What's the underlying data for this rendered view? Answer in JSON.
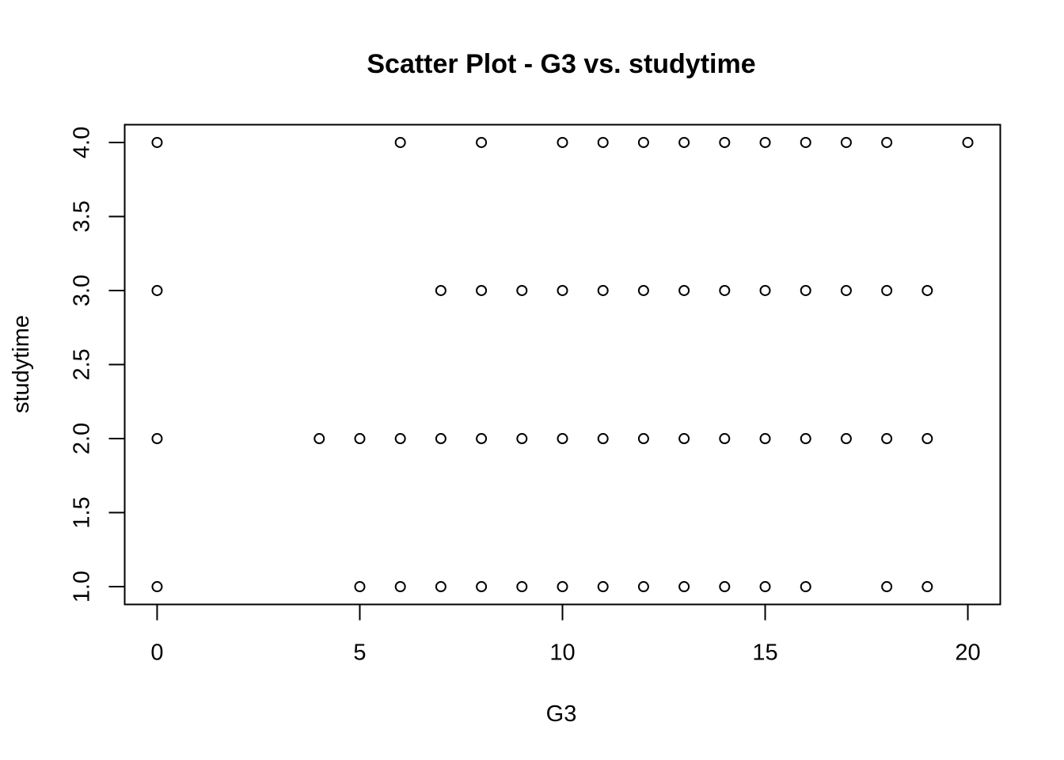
{
  "chart_data": {
    "type": "scatter",
    "title": "Scatter Plot - G3 vs. studytime",
    "xlabel": "G3",
    "ylabel": "studytime",
    "xlim": [
      -0.8,
      20.8
    ],
    "ylim": [
      0.88,
      4.12
    ],
    "xticks": [
      0,
      5,
      10,
      15,
      20
    ],
    "xtick_labels": [
      "0",
      "5",
      "10",
      "15",
      "20"
    ],
    "yticks": [
      1.0,
      1.5,
      2.0,
      2.5,
      3.0,
      3.5,
      4.0
    ],
    "ytick_labels": [
      "1.0",
      "1.5",
      "2.0",
      "2.5",
      "3.0",
      "3.5",
      "4.0"
    ],
    "grid": false,
    "marker": "open-circle",
    "points": [
      {
        "x": 0,
        "y": 4
      },
      {
        "x": 6,
        "y": 4
      },
      {
        "x": 8,
        "y": 4
      },
      {
        "x": 10,
        "y": 4
      },
      {
        "x": 11,
        "y": 4
      },
      {
        "x": 12,
        "y": 4
      },
      {
        "x": 13,
        "y": 4
      },
      {
        "x": 14,
        "y": 4
      },
      {
        "x": 15,
        "y": 4
      },
      {
        "x": 16,
        "y": 4
      },
      {
        "x": 17,
        "y": 4
      },
      {
        "x": 18,
        "y": 4
      },
      {
        "x": 20,
        "y": 4
      },
      {
        "x": 0,
        "y": 3
      },
      {
        "x": 7,
        "y": 3
      },
      {
        "x": 8,
        "y": 3
      },
      {
        "x": 9,
        "y": 3
      },
      {
        "x": 10,
        "y": 3
      },
      {
        "x": 11,
        "y": 3
      },
      {
        "x": 12,
        "y": 3
      },
      {
        "x": 13,
        "y": 3
      },
      {
        "x": 14,
        "y": 3
      },
      {
        "x": 15,
        "y": 3
      },
      {
        "x": 16,
        "y": 3
      },
      {
        "x": 17,
        "y": 3
      },
      {
        "x": 18,
        "y": 3
      },
      {
        "x": 19,
        "y": 3
      },
      {
        "x": 0,
        "y": 2
      },
      {
        "x": 4,
        "y": 2
      },
      {
        "x": 5,
        "y": 2
      },
      {
        "x": 6,
        "y": 2
      },
      {
        "x": 7,
        "y": 2
      },
      {
        "x": 8,
        "y": 2
      },
      {
        "x": 9,
        "y": 2
      },
      {
        "x": 10,
        "y": 2
      },
      {
        "x": 11,
        "y": 2
      },
      {
        "x": 12,
        "y": 2
      },
      {
        "x": 13,
        "y": 2
      },
      {
        "x": 14,
        "y": 2
      },
      {
        "x": 15,
        "y": 2
      },
      {
        "x": 16,
        "y": 2
      },
      {
        "x": 17,
        "y": 2
      },
      {
        "x": 18,
        "y": 2
      },
      {
        "x": 19,
        "y": 2
      },
      {
        "x": 0,
        "y": 1
      },
      {
        "x": 5,
        "y": 1
      },
      {
        "x": 6,
        "y": 1
      },
      {
        "x": 7,
        "y": 1
      },
      {
        "x": 8,
        "y": 1
      },
      {
        "x": 9,
        "y": 1
      },
      {
        "x": 10,
        "y": 1
      },
      {
        "x": 11,
        "y": 1
      },
      {
        "x": 12,
        "y": 1
      },
      {
        "x": 13,
        "y": 1
      },
      {
        "x": 14,
        "y": 1
      },
      {
        "x": 15,
        "y": 1
      },
      {
        "x": 16,
        "y": 1
      },
      {
        "x": 18,
        "y": 1
      },
      {
        "x": 19,
        "y": 1
      }
    ],
    "colors": {
      "marker": "#000000",
      "axis": "#000000",
      "background": "#ffffff"
    }
  }
}
